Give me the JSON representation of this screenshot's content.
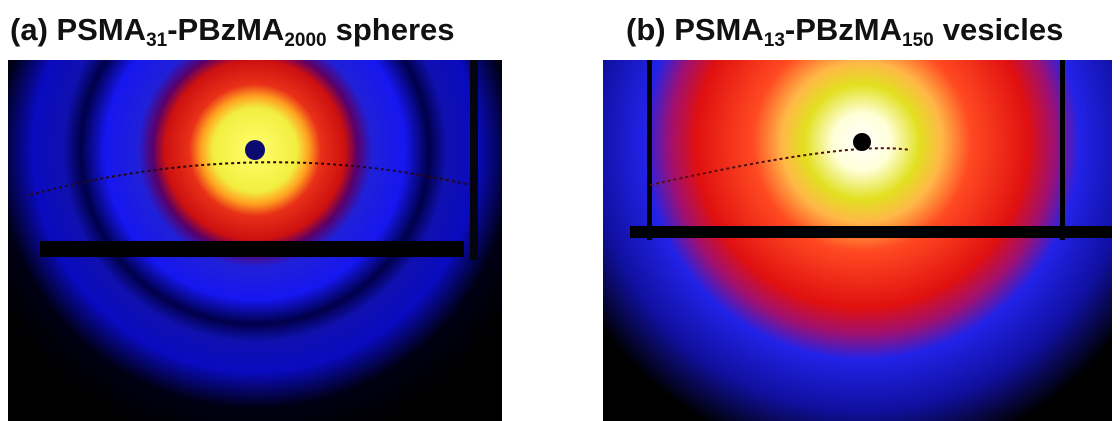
{
  "panels": [
    {
      "title": [
        "(a) PSMA",
        "31",
        "-PBzMA",
        "2000",
        "spheres"
      ]
    },
    {
      "title": [
        "(b) PSMA",
        "13",
        "-PBzMA",
        "150",
        "vesicles"
      ]
    }
  ]
}
